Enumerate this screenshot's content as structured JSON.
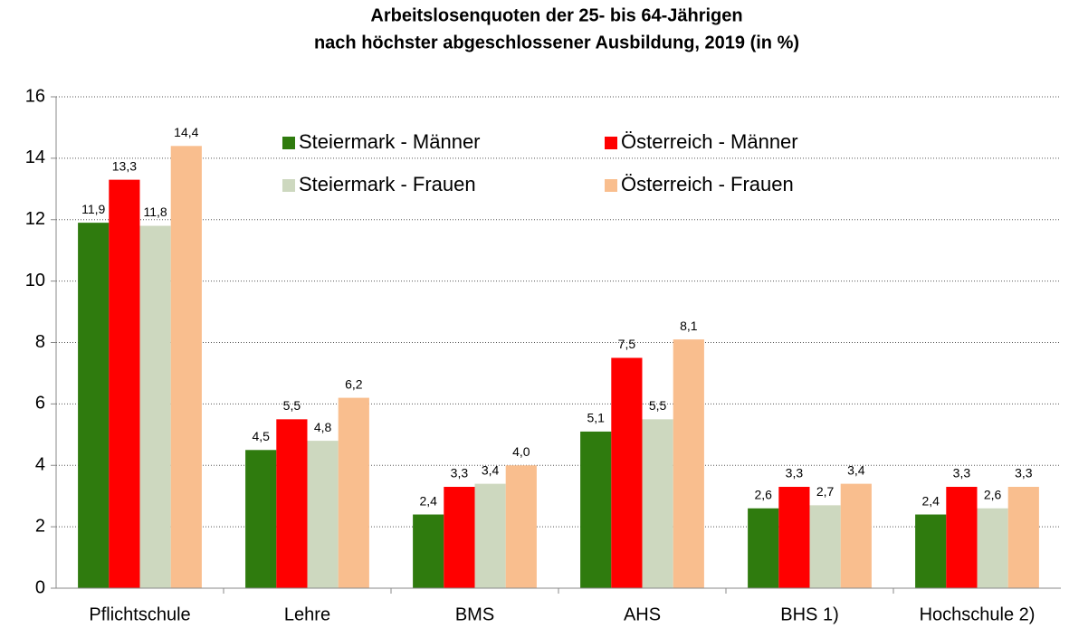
{
  "chart_data": {
    "type": "bar",
    "title": "Arbeitslosenquoten der 25- bis 64-Jährigen",
    "subtitle": "nach höchster abgeschlossener Ausbildung, 2019 (in %)",
    "categories": [
      "Pflichtschule",
      "Lehre",
      "BMS",
      "AHS",
      "BHS 1)",
      "Hochschule 2)"
    ],
    "series": [
      {
        "name": "Steiermark - Männer",
        "color": "#2f7b0e",
        "values": [
          11.9,
          4.5,
          2.4,
          5.1,
          2.6,
          2.4
        ],
        "value_labels": [
          "11,9",
          "4,5",
          "2,4",
          "5,1",
          "2,6",
          "2,4"
        ]
      },
      {
        "name": "Österreich - Männer",
        "color": "#ff0000",
        "values": [
          13.3,
          5.5,
          3.3,
          7.5,
          3.3,
          3.3
        ],
        "value_labels": [
          "13,3",
          "5,5",
          "3,3",
          "7,5",
          "3,3",
          "3,3"
        ]
      },
      {
        "name": "Steiermark - Frauen",
        "color": "#cdd8bf",
        "values": [
          11.8,
          4.8,
          3.4,
          5.5,
          2.7,
          2.6
        ],
        "value_labels": [
          "11,8",
          "4,8",
          "3,4",
          "5,5",
          "2,7",
          "2,6"
        ]
      },
      {
        "name": "Österreich - Frauen",
        "color": "#f9be8e",
        "values": [
          14.4,
          6.2,
          4.0,
          8.1,
          3.4,
          3.3
        ],
        "value_labels": [
          "14,4",
          "6,2",
          "4,0",
          "8,1",
          "3,4",
          "3,3"
        ]
      }
    ],
    "ylim": [
      0,
      16
    ],
    "yticks": [
      0,
      2,
      4,
      6,
      8,
      10,
      12,
      14,
      16
    ],
    "grid": true,
    "legend": "top"
  }
}
